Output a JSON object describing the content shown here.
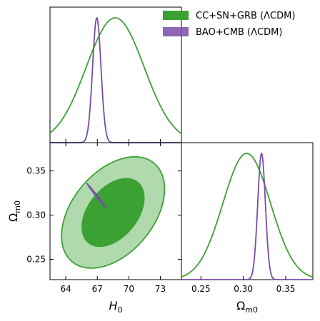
{
  "chart_data": {
    "type": "triangle",
    "colors": {
      "green": "#3aa132",
      "purple": "#7a4ca8"
    },
    "legend": {
      "placement": "top-right",
      "entries": [
        {
          "label": "CC+SN+GRB (ΛCDM)",
          "color": "#3aa132"
        },
        {
          "label": "BAO+CMB (ΛCDM)",
          "color": "#7a4ca8"
        }
      ]
    },
    "axes": {
      "H0": {
        "label_main": "H",
        "label_sub": "0",
        "range": [
          62.5,
          75.0
        ],
        "ticks": [
          64,
          67,
          70,
          73
        ],
        "tick_labels": [
          "64",
          "67",
          "70",
          "73"
        ]
      },
      "Om": {
        "label_main": "Ω",
        "label_sub": "m0",
        "range": [
          0.227,
          0.382
        ],
        "ticks": [
          0.25,
          0.3,
          0.35
        ],
        "tick_labels": [
          "0.25",
          "0.30",
          "0.35"
        ]
      }
    },
    "series": [
      {
        "name": "CC+SN+GRB (ΛCDM)",
        "color": "#3aa132",
        "H0": {
          "mean": 68.7,
          "sigma": 2.75
        },
        "Om": {
          "mean": 0.304,
          "sigma": 0.028
        },
        "contour_2sigma": {
          "center": [
            68.5,
            0.303
          ],
          "half_width_H0": 4.9,
          "half_height_Om": 0.063,
          "corr": -0.42
        },
        "contour_1sigma": {
          "center": [
            68.5,
            0.303
          ],
          "half_width_H0": 3.0,
          "half_height_Om": 0.039,
          "corr": -0.42
        }
      },
      {
        "name": "BAO+CMB (ΛCDM)",
        "color": "#7a4ca8",
        "H0": {
          "mean": 66.95,
          "sigma": 0.4
        },
        "Om": {
          "mean": 0.3215,
          "sigma": 0.0045
        },
        "contour": {
          "from": [
            66.0,
            0.336
          ],
          "to": [
            67.85,
            0.308
          ]
        }
      }
    ]
  }
}
